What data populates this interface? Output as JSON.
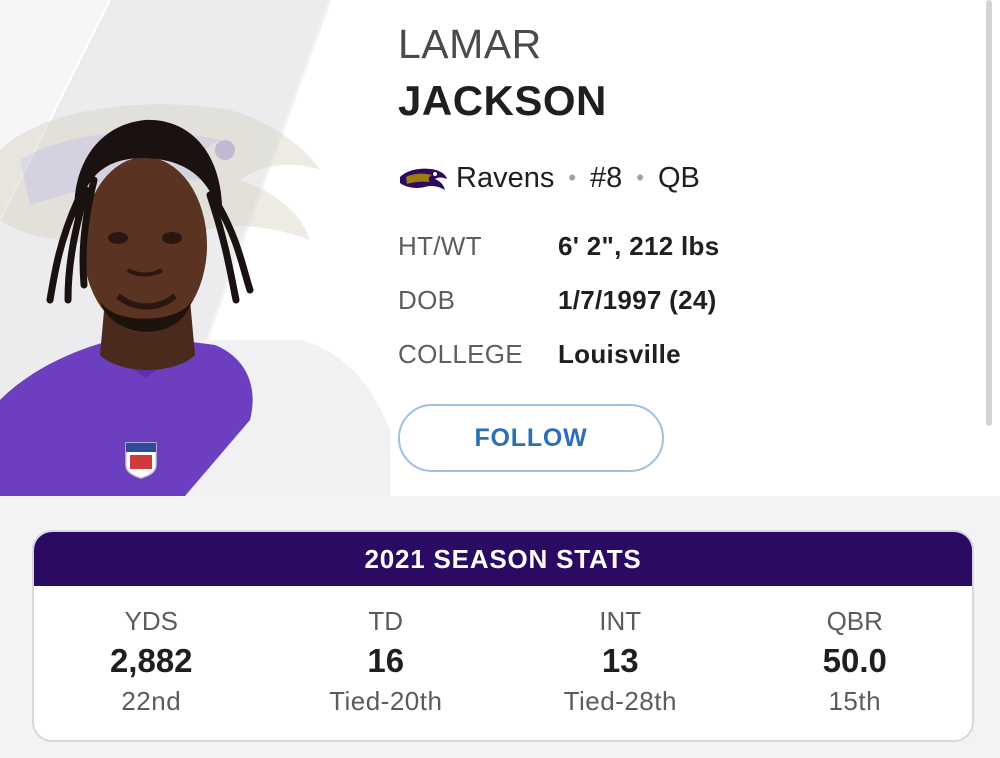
{
  "player": {
    "first_name": "LAMAR",
    "last_name": "JACKSON",
    "team": "Ravens",
    "number": "#8",
    "position": "QB",
    "separator": "•"
  },
  "info": [
    {
      "label": "HT/WT",
      "value": "6' 2\", 212 lbs"
    },
    {
      "label": "DOB",
      "value": "1/7/1997 (24)"
    },
    {
      "label": "COLLEGE",
      "value": "Louisville"
    }
  ],
  "follow_label": "FOLLOW",
  "stats": {
    "title": "2021 SEASON STATS",
    "columns": [
      {
        "label": "YDS",
        "value": "2,882",
        "rank": "22nd"
      },
      {
        "label": "TD",
        "value": "16",
        "rank": "Tied-20th"
      },
      {
        "label": "INT",
        "value": "13",
        "rank": "Tied-28th"
      },
      {
        "label": "QBR",
        "value": "50.0",
        "rank": "15th"
      }
    ]
  },
  "colors": {
    "ravens_purple": "#2b0a63",
    "follow_blue": "#2c6fb6",
    "follow_border": "#9fc0e6"
  },
  "icons": {
    "team_logo": "ravens-logo-icon",
    "player_photo": "player-headshot",
    "jersey_badge": "nfl-shield-icon"
  }
}
